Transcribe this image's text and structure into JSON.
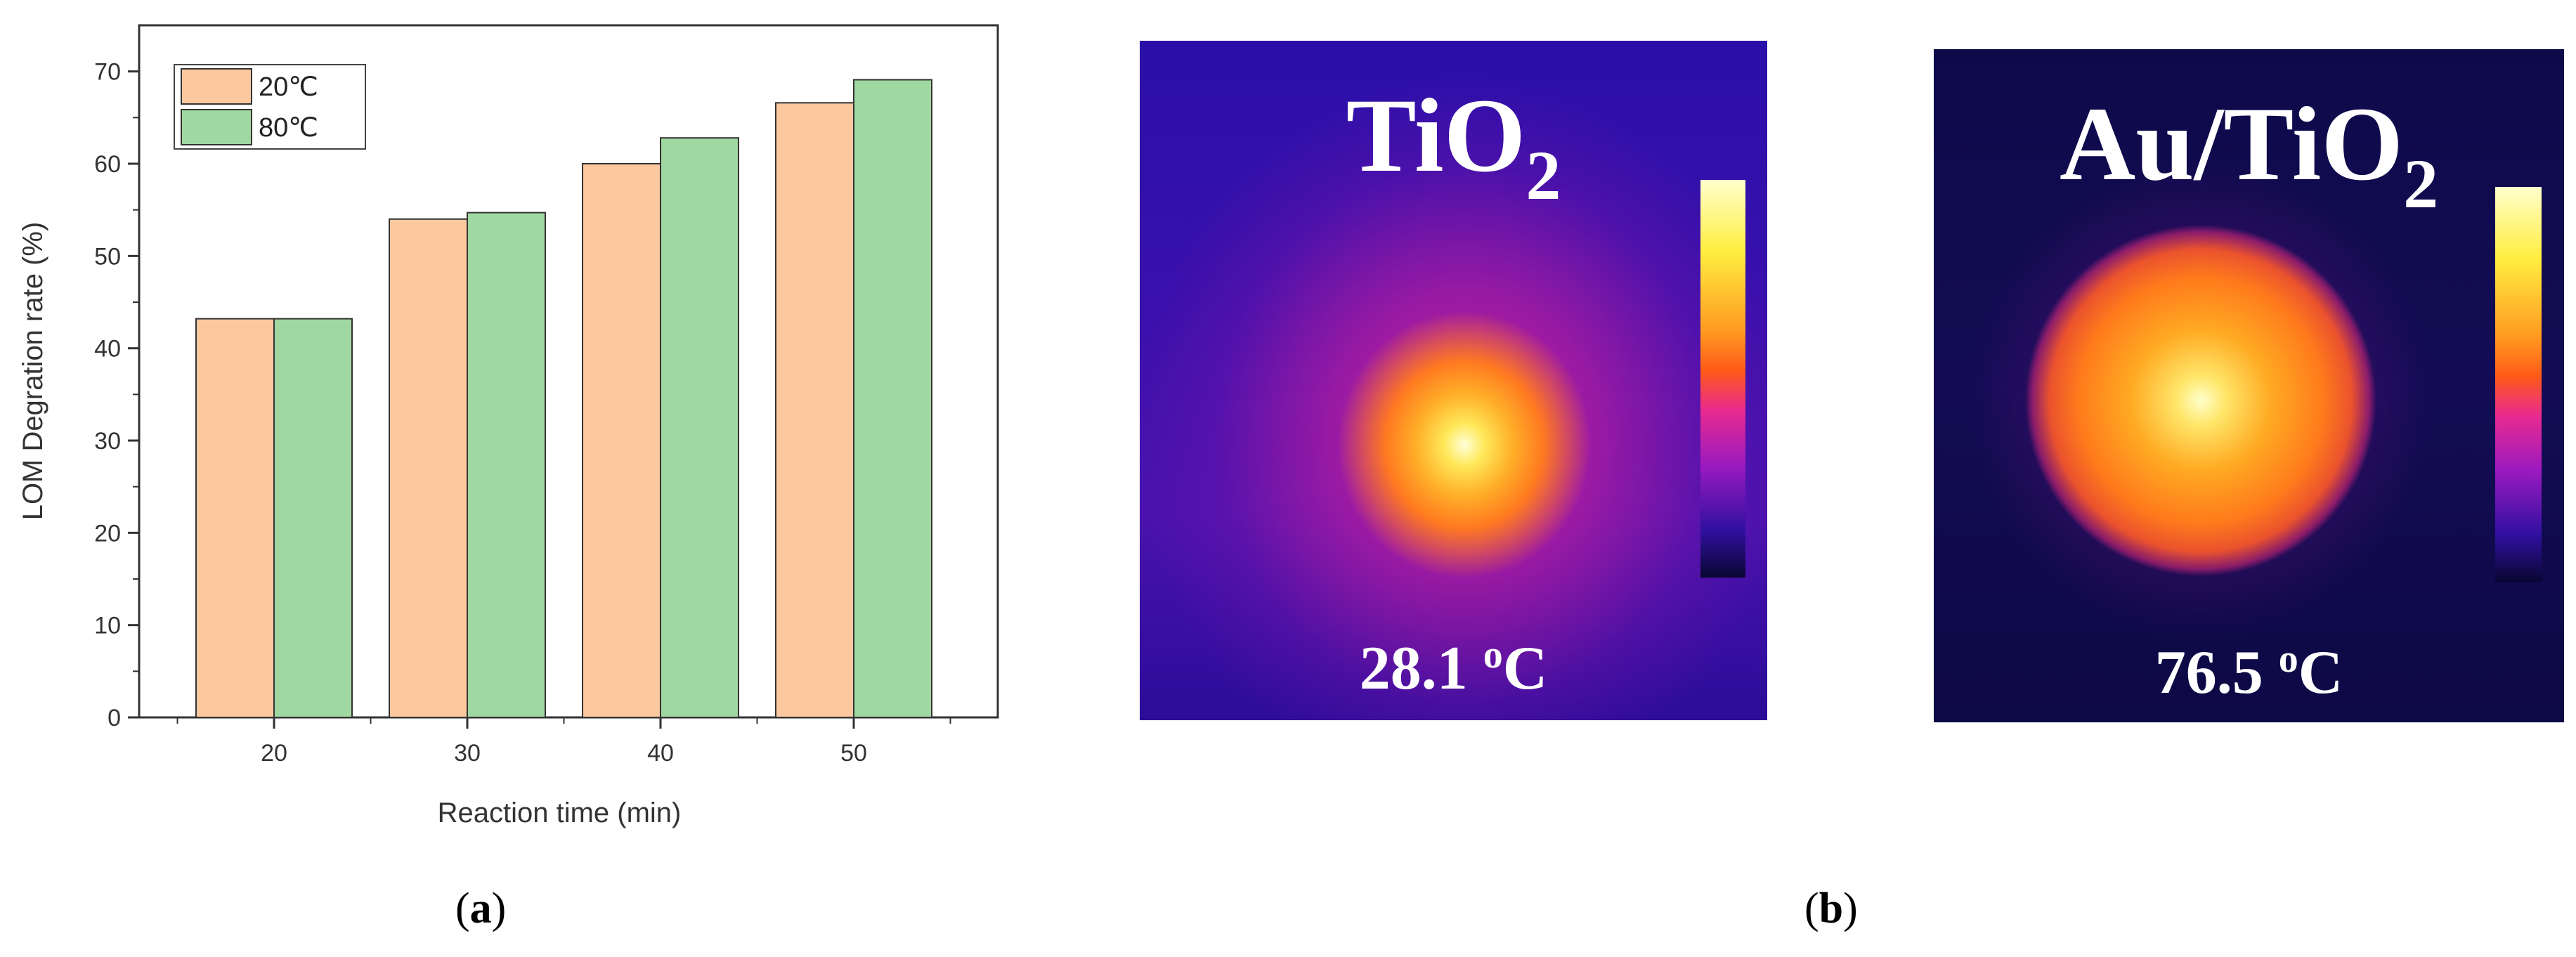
{
  "chart_data": {
    "type": "bar",
    "categories": [
      "20",
      "30",
      "40",
      "50"
    ],
    "series": [
      {
        "name": "20℃",
        "values": [
          43.2,
          54.0,
          60.0,
          66.6
        ],
        "color": "#fbc8a0"
      },
      {
        "name": "80℃",
        "values": [
          43.2,
          54.7,
          62.8,
          69.1
        ],
        "color": "#a0d8a1"
      }
    ],
    "xlabel": "Reaction  time (min)",
    "ylabel": "LOM Degration rate (%)",
    "ylim": [
      0,
      75
    ],
    "yticks": [
      "0",
      "10",
      "20",
      "30",
      "40",
      "50",
      "60",
      "70"
    ],
    "legend_position": "top-left",
    "grid": false
  },
  "panels": {
    "a": {
      "open": "(",
      "letter": "a",
      "close": ")"
    },
    "b": {
      "open": "(",
      "letter": "b",
      "close": ")"
    }
  },
  "thermal_images": [
    {
      "title_main": "TiO",
      "title_sub": "2",
      "temperature": "28.1 ",
      "temp_sup": "o",
      "temp_unit": "C"
    },
    {
      "title_main": "Au/TiO",
      "title_sub": "2",
      "temperature": "76.5 ",
      "temp_sup": "o",
      "temp_unit": "C"
    }
  ]
}
